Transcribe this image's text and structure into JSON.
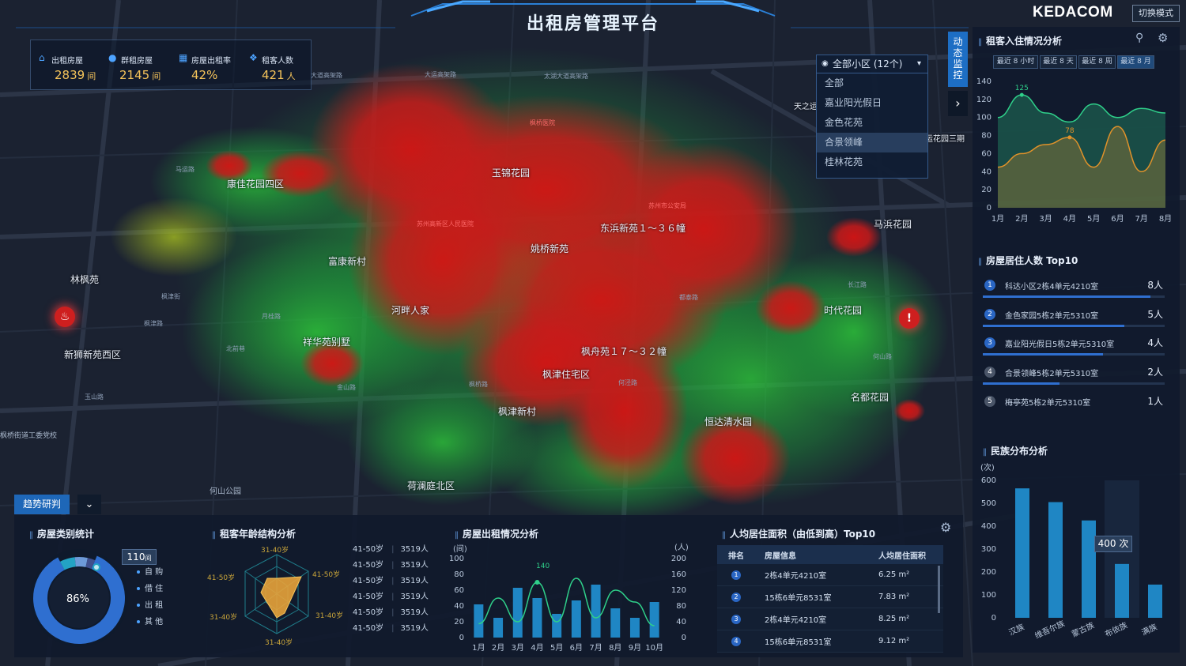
{
  "header": {
    "title": "出租房管理平台",
    "brand": "KEDACOM",
    "mode_button": "切换模式"
  },
  "stats": [
    {
      "label": "出租房屋",
      "value": "2839",
      "unit": "间",
      "icon": "house-icon"
    },
    {
      "label": "群租房屋",
      "value": "2145",
      "unit": "间",
      "icon": "person-icon"
    },
    {
      "label": "房屋出租率",
      "value": "42%",
      "unit": "",
      "icon": "building-icon"
    },
    {
      "label": "租客人数",
      "value": "421",
      "unit": "人",
      "icon": "group-icon"
    }
  ],
  "map": {
    "places": [
      "康佳花园四区",
      "玉锦花园",
      "东浜新苑１～３６幢",
      "姚桥新苑",
      "富康新村",
      "林枫苑",
      "河畔人家",
      "马浜花园",
      "时代花园",
      "祥华苑别墅",
      "新狮新苑西区",
      "枫舟苑１７～３２幢",
      "枫津住宅区",
      "名都花园",
      "枫津新村",
      "恒达清水园",
      "荷澜庭北区",
      "何山公园",
      "天之运",
      "运花园三期",
      "枫桥街道工委党校"
    ],
    "roads": [
      "大道高架路",
      "大运高架路",
      "太湖大道高架路",
      "马运路",
      "何山路",
      "枫津街",
      "枫津路",
      "月桂路",
      "北前巷",
      "长江路",
      "金山路",
      "枫桥路",
      "玉山路",
      "都泰路",
      "何泾路"
    ],
    "red_labels": [
      "苏州高新区人民医院",
      "枫桥医院",
      "苏州市公安局"
    ]
  },
  "district_select": {
    "selected": "全部小区 (12个)",
    "options": [
      "全部",
      "嘉业阳光假日",
      "金色花苑",
      "合景领峰",
      "桂林花苑"
    ]
  },
  "side_tab": "动态监控",
  "checkin": {
    "title": "租客入住情况分析",
    "ranges": [
      "最近 8 小时",
      "最近 8 天",
      "最近 8 周",
      "最近 8 月"
    ],
    "active_range": 3
  },
  "top10": {
    "title": "房屋居住人数 Top10",
    "items": [
      {
        "rank": "1",
        "name": "科达小区2栋4单元4210室",
        "value": "8人",
        "ratio": 0.92
      },
      {
        "rank": "2",
        "name": "金色家园5栋2单元5310室",
        "value": "5人",
        "ratio": 0.78
      },
      {
        "rank": "3",
        "name": "嘉业阳光假日5栋2单元5310室",
        "value": "4人",
        "ratio": 0.66
      },
      {
        "rank": "4",
        "name": "合景领峰5栋2单元5310室",
        "value": "2人",
        "ratio": 0.42
      },
      {
        "rank": "5",
        "name": "梅亭苑5栋2单元5310室",
        "value": "1人",
        "ratio": 0.24
      }
    ]
  },
  "ethnic": {
    "title": "民族分布分析",
    "unit": "(次)",
    "tooltip": "400 次"
  },
  "trend": {
    "button": "趋势研判"
  },
  "house_type": {
    "title": "房屋类别统计",
    "center": "86%",
    "badge": "110",
    "badge_unit": "间",
    "legend": [
      "自 购",
      "借 住",
      "出 租",
      "其 他"
    ]
  },
  "age": {
    "title": "租客年龄结构分析",
    "axes": [
      "31-40岁",
      "41-50岁",
      "31-40岁",
      "31-40岁",
      "31-40岁",
      "41-50岁"
    ],
    "list": [
      {
        "age": "41-50岁",
        "count": "3519人"
      },
      {
        "age": "41-50岁",
        "count": "3519人"
      },
      {
        "age": "41-50岁",
        "count": "3519人"
      },
      {
        "age": "41-50岁",
        "count": "3519人"
      },
      {
        "age": "41-50岁",
        "count": "3519人"
      },
      {
        "age": "41-50岁",
        "count": "3519人"
      }
    ]
  },
  "rental": {
    "title": "房屋出租情况分析",
    "left_unit": "(间)",
    "right_unit": "(人)",
    "peak_label": "140"
  },
  "area_rank": {
    "title": "人均居住面积（由低到高）Top10",
    "headers": [
      "排名",
      "房屋信息",
      "人均居住面积"
    ],
    "rows": [
      {
        "rank": "1",
        "info": "2栋4单元4210室",
        "area": "6.25 m²"
      },
      {
        "rank": "2",
        "info": "15栋6单元8531室",
        "area": "7.83 m²"
      },
      {
        "rank": "3",
        "info": "2栋4单元4210室",
        "area": "8.25 m²"
      },
      {
        "rank": "4",
        "info": "15栋6单元8531室",
        "area": "9.12 m²"
      }
    ]
  },
  "chart_data": [
    {
      "type": "area",
      "title": "租客入住情况分析",
      "categories": [
        "1月",
        "2月",
        "3月",
        "4月",
        "5月",
        "6月",
        "7月",
        "8月"
      ],
      "ylim": [
        0,
        140
      ],
      "yticks": [
        0,
        20,
        40,
        60,
        80,
        100,
        120,
        140
      ],
      "series": [
        {
          "values": [
            100,
            125,
            105,
            95,
            115,
            100,
            110,
            105
          ],
          "color": "#2fd08a"
        },
        {
          "values": [
            45,
            60,
            70,
            78,
            45,
            90,
            40,
            75
          ],
          "color": "#e0922a"
        }
      ],
      "data_labels": [
        "125",
        "78"
      ]
    },
    {
      "type": "bar",
      "title": "民族分布分析",
      "categories": [
        "汉族",
        "维吾尔族",
        "蒙古族",
        "布依族",
        "满族"
      ],
      "values": [
        565,
        505,
        425,
        235,
        145
      ],
      "ylim": [
        0,
        600
      ],
      "yticks": [
        0,
        100,
        200,
        300,
        400,
        500,
        600
      ]
    },
    {
      "type": "bar",
      "title": "房屋出租情况分析",
      "categories": [
        "1月",
        "2月",
        "3月",
        "4月",
        "5月",
        "6月",
        "7月",
        "8月",
        "9月",
        "10月"
      ],
      "bars": [
        42,
        25,
        63,
        50,
        30,
        47,
        67,
        37,
        25,
        45
      ],
      "line": [
        35,
        100,
        40,
        140,
        40,
        150,
        50,
        120,
        90,
        30
      ],
      "left_ylim": [
        0,
        100
      ],
      "left_yticks": [
        0,
        20,
        40,
        60,
        80,
        100
      ],
      "right_ylim": [
        0,
        200
      ],
      "right_yticks": [
        0,
        40,
        80,
        120,
        160,
        200
      ]
    },
    {
      "type": "pie",
      "title": "房屋类别统计",
      "categories": [
        "自 购",
        "借 住",
        "出 租",
        "其 他"
      ],
      "values": [
        86,
        6,
        5,
        3
      ]
    }
  ]
}
